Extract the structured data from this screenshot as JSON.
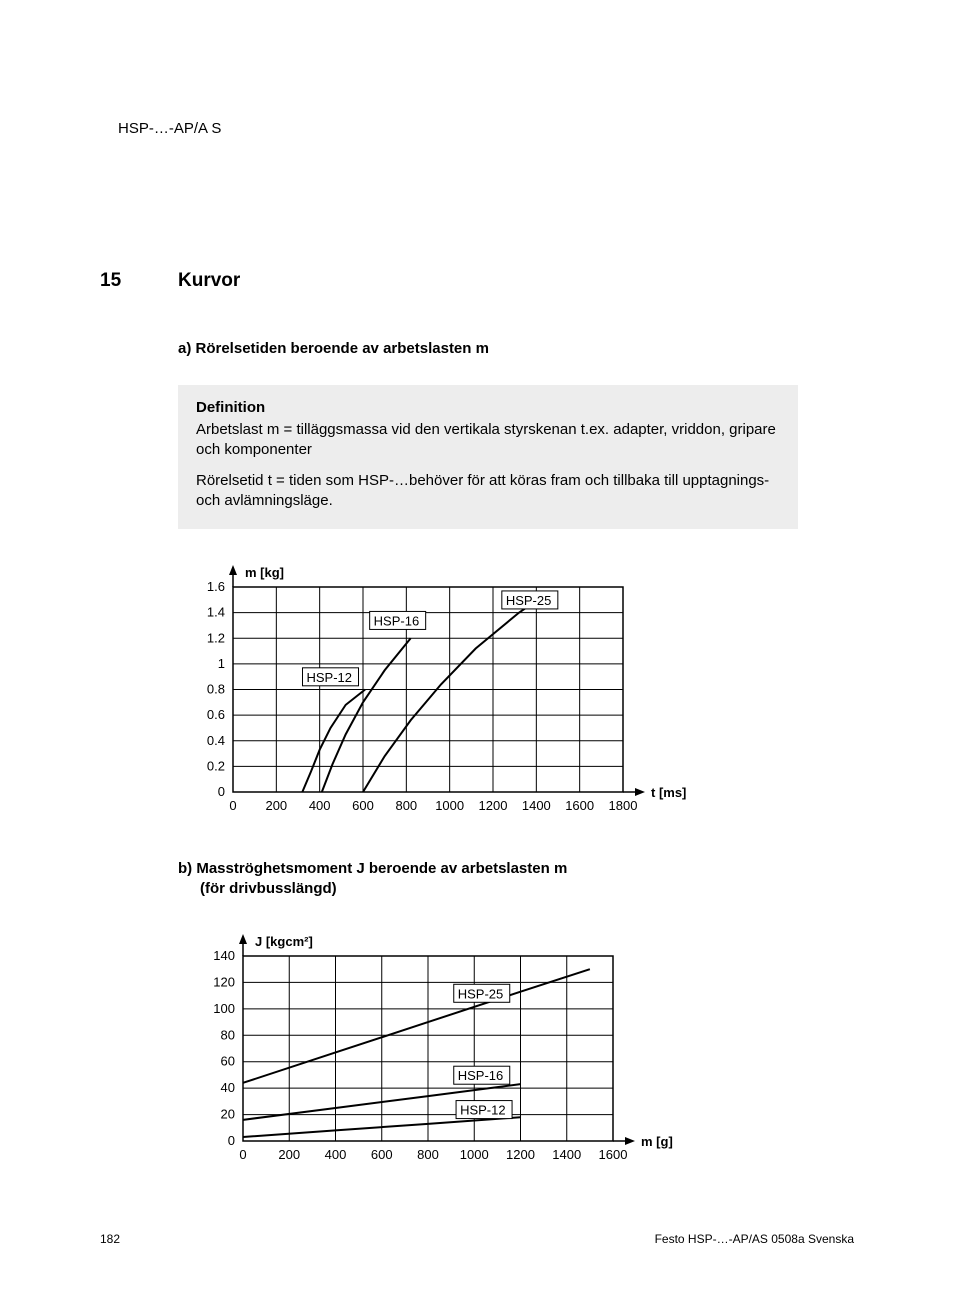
{
  "doc_header": "HSP-…-AP/A S",
  "section": {
    "number": "15",
    "title": "Kurvor"
  },
  "sub_a": "a)  Rörelsetiden beroende av arbetslasten m",
  "definition": {
    "heading": "Definition",
    "p1": "Arbetslast m = tilläggsmassa vid den vertikala styrskenan t.ex. adapter, vriddon, gripare och komponenter",
    "p2": "Rörelsetid t = tiden som HSP-…behöver för att köras fram och tillbaka till upptagnings- och avlämningsläge."
  },
  "chart_a": {
    "type": "line",
    "y_label": "m [kg]",
    "x_label": "t [ms]",
    "x_min": 0,
    "x_max": 1800,
    "x_ticks": [
      0,
      200,
      400,
      600,
      800,
      1000,
      1200,
      1400,
      1600,
      1800
    ],
    "y_min": 0,
    "y_max": 1.6,
    "y_ticks": [
      0,
      0.2,
      0.4,
      0.6,
      0.8,
      1.0,
      1.2,
      1.4,
      1.6
    ],
    "grid_color": "#000000",
    "bg": "#ffffff",
    "line_color": "#000000",
    "line_width": 2,
    "series": [
      {
        "label": "HSP-12",
        "label_x": 330,
        "label_y": 0.86,
        "points": [
          [
            320,
            0
          ],
          [
            360,
            0.16
          ],
          [
            400,
            0.33
          ],
          [
            450,
            0.5
          ],
          [
            520,
            0.68
          ],
          [
            610,
            0.8
          ]
        ]
      },
      {
        "label": "HSP-16",
        "label_x": 640,
        "label_y": 1.3,
        "points": [
          [
            410,
            0
          ],
          [
            460,
            0.22
          ],
          [
            520,
            0.45
          ],
          [
            600,
            0.7
          ],
          [
            700,
            0.95
          ],
          [
            820,
            1.2
          ]
        ]
      },
      {
        "label": "HSP-25",
        "label_x": 1250,
        "label_y": 1.46,
        "points": [
          [
            600,
            0
          ],
          [
            700,
            0.28
          ],
          [
            820,
            0.56
          ],
          [
            960,
            0.84
          ],
          [
            1120,
            1.12
          ],
          [
            1320,
            1.4
          ],
          [
            1450,
            1.55
          ]
        ]
      }
    ],
    "label_boxes": true,
    "font_size_axis": 13,
    "font_size_label": 13
  },
  "sub_b_l1": "b)  Masströghetsmoment J beroende av arbetslasten m",
  "sub_b_l2": "(för drivbusslängd)",
  "chart_b": {
    "type": "line",
    "y_label": "J [kgcm²]",
    "x_label": "m [g]",
    "x_min": 0,
    "x_max": 1600,
    "x_ticks": [
      0,
      200,
      400,
      600,
      800,
      1000,
      1200,
      1400,
      1600
    ],
    "y_min": 0,
    "y_max": 140,
    "y_ticks": [
      0,
      20,
      40,
      60,
      80,
      100,
      120,
      140
    ],
    "grid_color": "#000000",
    "bg": "#ffffff",
    "line_color": "#000000",
    "line_width": 2,
    "series": [
      {
        "label": "HSP-12",
        "label_x": 930,
        "label_y": 20,
        "points": [
          [
            0,
            3
          ],
          [
            400,
            8
          ],
          [
            800,
            13
          ],
          [
            1200,
            18
          ]
        ]
      },
      {
        "label": "HSP-16",
        "label_x": 920,
        "label_y": 46,
        "points": [
          [
            0,
            16
          ],
          [
            400,
            25
          ],
          [
            800,
            34
          ],
          [
            1200,
            43
          ]
        ]
      },
      {
        "label": "HSP-25",
        "label_x": 920,
        "label_y": 108,
        "points": [
          [
            0,
            44
          ],
          [
            400,
            67
          ],
          [
            800,
            90
          ],
          [
            1200,
            113
          ],
          [
            1500,
            130
          ]
        ]
      }
    ],
    "label_boxes": true,
    "font_size_axis": 13,
    "font_size_label": 13
  },
  "footer": {
    "page": "182",
    "right": "Festo HSP-…-AP/AS 0508a Svenska"
  }
}
